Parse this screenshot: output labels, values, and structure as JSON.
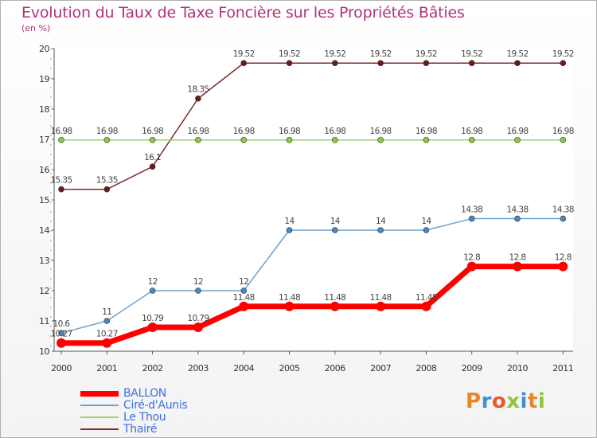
{
  "title": "Evolution du Taux de Taxe Foncière sur les Propriétés Bâties",
  "unit": "(en %)",
  "logo": {
    "text": "Proxiti",
    "colors": [
      "#e8862a",
      "#3f8fd8",
      "#e85a2a",
      "#8dc63f",
      "#3f8fd8",
      "#e8862a",
      "#8dc63f"
    ]
  },
  "chart_data": {
    "type": "line",
    "title": "Evolution du Taux de Taxe Foncière sur les Propriétés Bâties",
    "ylabel": "(en %)",
    "xlabel": "",
    "ylim": [
      10,
      20
    ],
    "yticks": [
      10,
      11,
      12,
      13,
      14,
      15,
      16,
      17,
      18,
      19,
      20
    ],
    "categories": [
      "2000",
      "2001",
      "2002",
      "2003",
      "2004",
      "2005",
      "2006",
      "2007",
      "2008",
      "2009",
      "2010",
      "2011"
    ],
    "series": [
      {
        "name": "Thairé",
        "color": "#7a2e2e",
        "marker": "#6b1a1a",
        "width": 1.5,
        "r": 3.5,
        "values": [
          15.35,
          15.35,
          16.1,
          18.35,
          19.52,
          19.52,
          19.52,
          19.52,
          19.52,
          19.52,
          19.52,
          19.52
        ],
        "labels": [
          "15.35",
          "15.35",
          "16.1",
          "18.35",
          "19.52",
          "19.52",
          "19.52",
          "19.52",
          "19.52",
          "19.52",
          "19.52",
          "19.52"
        ]
      },
      {
        "name": "Le Thou",
        "color": "#9ad36a",
        "marker": "#8ccc3c",
        "width": 1.5,
        "r": 3.5,
        "values": [
          16.98,
          16.98,
          16.98,
          16.98,
          16.98,
          16.98,
          16.98,
          16.98,
          16.98,
          16.98,
          16.98,
          16.98
        ],
        "labels": [
          "16.98",
          "16.98",
          "16.98",
          "16.98",
          "16.98",
          "16.98",
          "16.98",
          "16.98",
          "16.98",
          "16.98",
          "16.98",
          "16.98"
        ]
      },
      {
        "name": "Ciré-d'Aunis",
        "color": "#6fa3cf",
        "marker": "#4a86c0",
        "width": 1.5,
        "r": 3.5,
        "values": [
          10.6,
          11,
          12,
          12,
          12,
          14,
          14,
          14,
          14,
          14.38,
          14.38,
          14.38
        ],
        "labels": [
          "10.6",
          "11",
          "12",
          "12",
          "12",
          "14",
          "14",
          "14",
          "14",
          "14.38",
          "14.38",
          "14.38"
        ]
      },
      {
        "name": "BALLON",
        "color": "#ff0000",
        "marker": "#ff0000",
        "width": 7,
        "r": 6,
        "values": [
          10.27,
          10.27,
          10.79,
          10.79,
          11.48,
          11.48,
          11.48,
          11.48,
          11.48,
          12.8,
          12.8,
          12.8
        ],
        "labels": [
          "10.27",
          "10.27",
          "10.79",
          "10.79",
          "11.48",
          "11.48",
          "11.48",
          "11.48",
          "11.48",
          "12.8",
          "12.8",
          "12.8"
        ]
      }
    ],
    "legend": [
      {
        "name": "BALLON",
        "color": "#ff0000",
        "thickness": 7
      },
      {
        "name": "Ciré-d'Aunis",
        "color": "#6fa3cf",
        "thickness": 2
      },
      {
        "name": "Le Thou",
        "color": "#9ad36a",
        "thickness": 2
      },
      {
        "name": "Thairé",
        "color": "#7a2e2e",
        "thickness": 2
      }
    ],
    "legend_position": "bottom-left"
  }
}
